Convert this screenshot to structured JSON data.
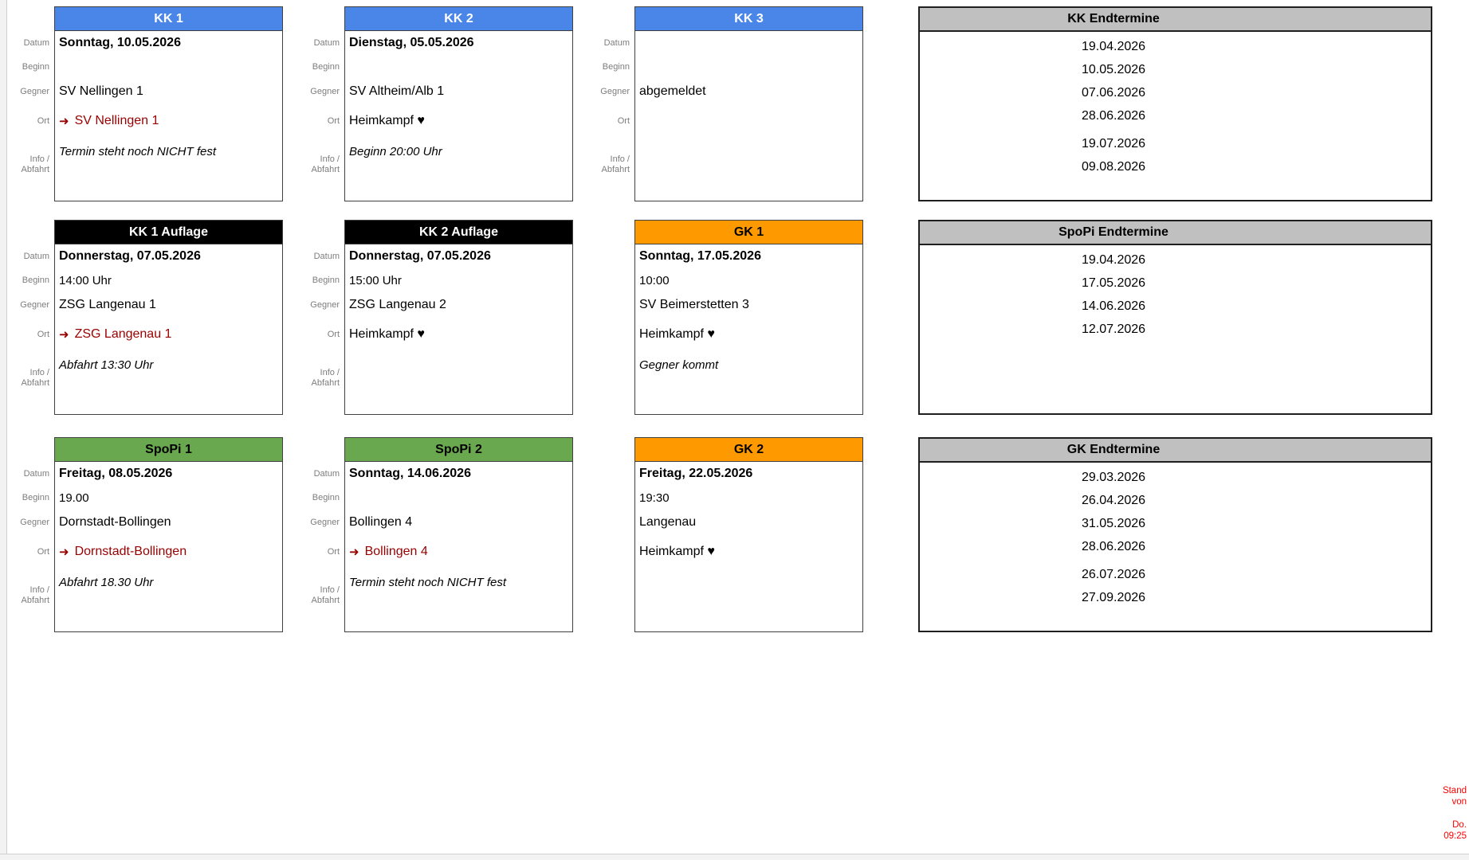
{
  "icons": {
    "away_arrow": "➜"
  },
  "row_labels": {
    "datum": "Datum",
    "beginn": "Beginn",
    "gegner": "Gegner",
    "ort": "Ort",
    "info_line1": "Info /",
    "info_line2": "Abfahrt"
  },
  "colors": {
    "kk_header": "#4a86e8",
    "auflage_header": "#000000",
    "gk_header": "#ff9900",
    "spopi_header": "#6aa84f",
    "table_header": "#c0c0c0",
    "away_text": "#990000",
    "stand_text": "#ff0000"
  },
  "cards": [
    {
      "id": "kk1",
      "title": "KK 1",
      "header_bg": "#4a86e8",
      "header_fg": "#ffffff",
      "show_labels": true,
      "datum": "Sonntag, 10.05.2026",
      "beginn": "",
      "gegner": "SV Nellingen 1",
      "ort": {
        "text": "SV Nellingen 1",
        "away": true
      },
      "info": "Termin steht noch NICHT fest"
    },
    {
      "id": "kk2",
      "title": "KK 2",
      "header_bg": "#4a86e8",
      "header_fg": "#ffffff",
      "show_labels": true,
      "datum": "Dienstag, 05.05.2026",
      "beginn": "",
      "gegner": "SV Altheim/Alb 1",
      "ort": {
        "text": "Heimkampf ♥",
        "away": false
      },
      "info": "Beginn 20:00 Uhr"
    },
    {
      "id": "kk3",
      "title": "KK 3",
      "header_bg": "#4a86e8",
      "header_fg": "#ffffff",
      "show_labels": true,
      "datum": "",
      "beginn": "",
      "gegner": "abgemeldet",
      "ort": {
        "text": "",
        "away": false
      },
      "info": ""
    },
    {
      "id": "kk1-auflage",
      "title": "KK 1 Auflage",
      "header_bg": "#000000",
      "header_fg": "#ffffff",
      "show_labels": true,
      "datum": "Donnerstag, 07.05.2026",
      "beginn": "14:00 Uhr",
      "gegner": "ZSG Langenau 1",
      "ort": {
        "text": "ZSG Langenau 1",
        "away": true
      },
      "info": "Abfahrt 13:30 Uhr"
    },
    {
      "id": "kk2-auflage",
      "title": "KK 2 Auflage",
      "header_bg": "#000000",
      "header_fg": "#ffffff",
      "show_labels": true,
      "datum": "Donnerstag, 07.05.2026",
      "beginn": "15:00 Uhr",
      "gegner": "ZSG Langenau 2",
      "ort": {
        "text": "Heimkampf ♥",
        "away": false
      },
      "info": ""
    },
    {
      "id": "gk1",
      "title": "GK 1",
      "header_bg": "#ff9900",
      "header_fg": "#000000",
      "show_labels": false,
      "datum": "Sonntag, 17.05.2026",
      "beginn": "10:00",
      "gegner": "SV Beimerstetten 3",
      "ort": {
        "text": "Heimkampf ♥",
        "away": false
      },
      "info": "Gegner kommt"
    },
    {
      "id": "spopi1",
      "title": "SpoPi 1",
      "header_bg": "#6aa84f",
      "header_fg": "#000000",
      "show_labels": true,
      "datum": "Freitag, 08.05.2026",
      "beginn": "19.00",
      "gegner": "Dornstadt-Bollingen",
      "ort": {
        "text": "Dornstadt-Bollingen",
        "away": true
      },
      "info": "Abfahrt 18.30 Uhr"
    },
    {
      "id": "spopi2",
      "title": "SpoPi 2",
      "header_bg": "#6aa84f",
      "header_fg": "#000000",
      "show_labels": true,
      "datum": "Sonntag, 14.06.2026",
      "beginn": "",
      "gegner": "Bollingen 4",
      "ort": {
        "text": "Bollingen 4",
        "away": true
      },
      "info": "Termin steht noch NICHT fest"
    },
    {
      "id": "gk2",
      "title": "GK 2",
      "header_bg": "#ff9900",
      "header_fg": "#000000",
      "show_labels": false,
      "datum": "Freitag, 22.05.2026",
      "beginn": "19:30",
      "gegner": "Langenau",
      "ort": {
        "text": "Heimkampf ♥",
        "away": false
      },
      "info": ""
    }
  ],
  "tables": [
    {
      "id": "kk-end",
      "title": "KK Endtermine",
      "dates": [
        "19.04.2026",
        "10.05.2026",
        "07.06.2026",
        "28.06.2026",
        "19.07.2026",
        "09.08.2026"
      ],
      "gap_after_index": 3
    },
    {
      "id": "spopi-end",
      "title": "SpoPi Endtermine",
      "dates": [
        "19.04.2026",
        "17.05.2026",
        "14.06.2026",
        "12.07.2026"
      ],
      "gap_after_index": null
    },
    {
      "id": "gk-end",
      "title": "GK Endtermine",
      "dates": [
        "29.03.2026",
        "26.04.2026",
        "31.05.2026",
        "28.06.2026",
        "26.07.2026",
        "27.09.2026"
      ],
      "gap_after_index": 3
    }
  ],
  "stand": {
    "line1": "Stand",
    "line2": "von",
    "line3": "Do.",
    "line4": "09:25"
  }
}
